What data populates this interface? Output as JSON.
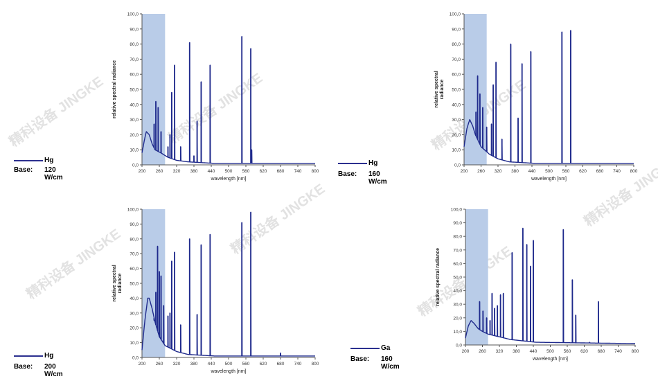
{
  "legends": [
    {
      "name": "Hg",
      "base_label": "Base:",
      "power": "120 W/cm"
    },
    {
      "name": "Hg",
      "base_label": "Base:",
      "power": "160 W/cm"
    },
    {
      "name": "Hg",
      "base_label": "Base:",
      "power": "200 W/cm"
    },
    {
      "name": "Ga",
      "base_label": "Base:",
      "power": "160 W/cm"
    }
  ],
  "watermark": {
    "line1": "精科设备",
    "line2": "JINGKE"
  },
  "colors": {
    "trace": "#1f2a8c",
    "highlight": "#b9cce8",
    "axis": "#555555"
  },
  "chart_data": [
    {
      "type": "line",
      "xlabel": "wavelength [nm]",
      "ylabel": "relative spectral radiance",
      "xlim": [
        200,
        800
      ],
      "ylim": [
        0,
        100
      ],
      "xticks": [
        "200",
        "260",
        "320",
        "380",
        "440",
        "500",
        "560",
        "620",
        "680",
        "740",
        "800"
      ],
      "yticks": [
        "0,0",
        "10,0",
        "20,0",
        "30,0",
        "40,0",
        "50,0",
        "60,0",
        "70,0",
        "80,0",
        "90,0",
        "100,0"
      ],
      "highlight_range": [
        200,
        280
      ],
      "series": [
        {
          "base": [
            [
              200,
              8
            ],
            [
              210,
              18
            ],
            [
              215,
              22
            ],
            [
              225,
              20
            ],
            [
              235,
              14
            ],
            [
              245,
              10
            ],
            [
              265,
              8
            ],
            [
              290,
              5
            ],
            [
              320,
              3
            ],
            [
              360,
              2
            ],
            [
              450,
              1
            ],
            [
              800,
              1
            ]
          ],
          "peaks": [
            [
              242,
              27
            ],
            [
              248,
              42
            ],
            [
              256,
              38
            ],
            [
              266,
              22
            ],
            [
              290,
              12
            ],
            [
              297,
              20
            ],
            [
              303,
              48
            ],
            [
              313,
              66
            ],
            [
              334,
              12
            ],
            [
              365,
              81
            ],
            [
              380,
              6
            ],
            [
              391,
              29
            ],
            [
              405,
              55
            ],
            [
              436,
              66
            ],
            [
              546,
              85
            ],
            [
              577,
              77
            ],
            [
              580,
              10
            ]
          ]
        }
      ]
    },
    {
      "type": "line",
      "xlabel": "wavelength [nm]",
      "ylabel": "relative spectral radiance",
      "xlim": [
        200,
        800
      ],
      "ylim": [
        0,
        100
      ],
      "xticks": [
        "200",
        "260",
        "320",
        "380",
        "440",
        "500",
        "560",
        "620",
        "680",
        "740",
        "800"
      ],
      "yticks": [
        "0,0",
        "10,0",
        "20,0",
        "30,0",
        "40,0",
        "50,0",
        "60,0",
        "70,0",
        "80,0",
        "90,0",
        "100,0"
      ],
      "highlight_range": [
        200,
        280
      ],
      "series": [
        {
          "base": [
            [
              200,
              12
            ],
            [
              210,
              24
            ],
            [
              220,
              30
            ],
            [
              230,
              26
            ],
            [
              240,
              20
            ],
            [
              260,
              12
            ],
            [
              290,
              7
            ],
            [
              320,
              4
            ],
            [
              360,
              2
            ],
            [
              450,
              1
            ],
            [
              800,
              1
            ]
          ],
          "peaks": [
            [
              242,
              35
            ],
            [
              248,
              59
            ],
            [
              256,
              47
            ],
            [
              266,
              38
            ],
            [
              280,
              25
            ],
            [
              297,
              27
            ],
            [
              303,
              53
            ],
            [
              313,
              68
            ],
            [
              334,
              17
            ],
            [
              365,
              80
            ],
            [
              391,
              31
            ],
            [
              405,
              67
            ],
            [
              436,
              75
            ],
            [
              546,
              88
            ],
            [
              577,
              89
            ],
            [
              700,
              1
            ]
          ]
        }
      ]
    },
    {
      "type": "line",
      "xlabel": "wavelength [nm]",
      "ylabel": "relative spectral radiance",
      "xlim": [
        200,
        800
      ],
      "ylim": [
        0,
        100
      ],
      "xticks": [
        "200",
        "260",
        "320",
        "380",
        "440",
        "500",
        "560",
        "620",
        "680",
        "740",
        "800"
      ],
      "yticks": [
        "0,0",
        "10,0",
        "20,0",
        "30,0",
        "40,0",
        "50,0",
        "60,0",
        "70,0",
        "80,0",
        "90,0",
        "100,0"
      ],
      "highlight_range": [
        200,
        280
      ],
      "series": [
        {
          "base": [
            [
              200,
              5
            ],
            [
              210,
              25
            ],
            [
              220,
              40
            ],
            [
              225,
              40
            ],
            [
              235,
              33
            ],
            [
              245,
              24
            ],
            [
              260,
              14
            ],
            [
              280,
              8
            ],
            [
              320,
              4
            ],
            [
              360,
              2
            ],
            [
              450,
              1
            ],
            [
              800,
              1
            ]
          ],
          "peaks": [
            [
              242,
              25
            ],
            [
              248,
              44
            ],
            [
              254,
              75
            ],
            [
              260,
              58
            ],
            [
              266,
              55
            ],
            [
              275,
              35
            ],
            [
              290,
              28
            ],
            [
              297,
              30
            ],
            [
              303,
              65
            ],
            [
              313,
              71
            ],
            [
              334,
              22
            ],
            [
              365,
              80
            ],
            [
              391,
              29
            ],
            [
              405,
              76
            ],
            [
              436,
              83
            ],
            [
              546,
              91
            ],
            [
              577,
              98
            ],
            [
              680,
              3
            ]
          ]
        }
      ]
    },
    {
      "type": "line",
      "xlabel": "wavelength [nm]",
      "ylabel": "relative spectral radiance",
      "xlim": [
        200,
        800
      ],
      "ylim": [
        0,
        100
      ],
      "xticks": [
        "200",
        "260",
        "320",
        "380",
        "440",
        "500",
        "560",
        "620",
        "680",
        "740",
        "800"
      ],
      "yticks": [
        "0,0",
        "10,0",
        "20,0",
        "30,0",
        "40,0",
        "50,0",
        "60,0",
        "70,0",
        "80,0",
        "90,0",
        "100,0"
      ],
      "highlight_range": [
        200,
        280
      ],
      "series": [
        {
          "base": [
            [
              200,
              5
            ],
            [
              210,
              14
            ],
            [
              220,
              18
            ],
            [
              230,
              16
            ],
            [
              245,
              12
            ],
            [
              260,
              10
            ],
            [
              280,
              8
            ],
            [
              320,
              6
            ],
            [
              360,
              4
            ],
            [
              450,
              2
            ],
            [
              800,
              1
            ]
          ],
          "peaks": [
            [
              250,
              32
            ],
            [
              262,
              25
            ],
            [
              275,
              20
            ],
            [
              287,
              18
            ],
            [
              294,
              38
            ],
            [
              303,
              27
            ],
            [
              313,
              29
            ],
            [
              324,
              37
            ],
            [
              334,
              38
            ],
            [
              365,
              68
            ],
            [
              403,
              86
            ],
            [
              417,
              74
            ],
            [
              430,
              58
            ],
            [
              440,
              77
            ],
            [
              546,
              85
            ],
            [
              578,
              48
            ],
            [
              590,
              22
            ],
            [
              639,
              2
            ],
            [
              670,
              32
            ]
          ]
        }
      ]
    }
  ]
}
